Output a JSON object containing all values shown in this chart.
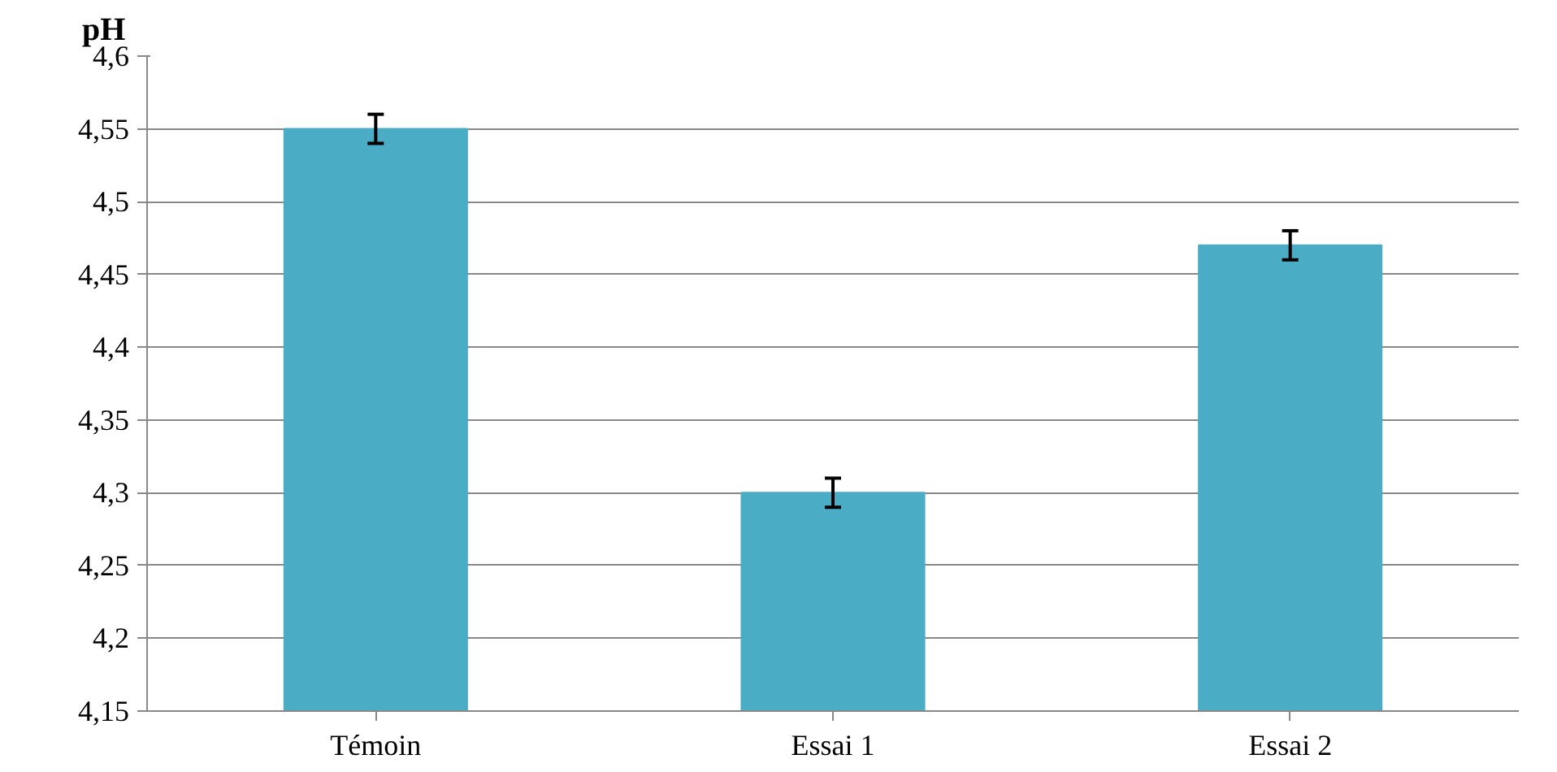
{
  "chart_data": {
    "type": "bar",
    "ylabel": "pH",
    "categories": [
      "Témoin",
      "Essai 1",
      "Essai 2"
    ],
    "values": [
      4.55,
      4.3,
      4.47
    ],
    "errors": [
      0.01,
      0.01,
      0.01
    ],
    "color": "#4bacc6",
    "ylim": [
      4.15,
      4.6
    ],
    "yticks": [
      {
        "value": 4.15,
        "label": "4,15"
      },
      {
        "value": 4.2,
        "label": "4,2"
      },
      {
        "value": 4.25,
        "label": "4,25"
      },
      {
        "value": 4.3,
        "label": "4,3"
      },
      {
        "value": 4.35,
        "label": "4,35"
      },
      {
        "value": 4.4,
        "label": "4,4"
      },
      {
        "value": 4.45,
        "label": "4,45"
      },
      {
        "value": 4.5,
        "label": "4,5"
      },
      {
        "value": 4.55,
        "label": "4,55"
      },
      {
        "value": 4.6,
        "label": "4,6"
      }
    ],
    "grid": "y"
  }
}
